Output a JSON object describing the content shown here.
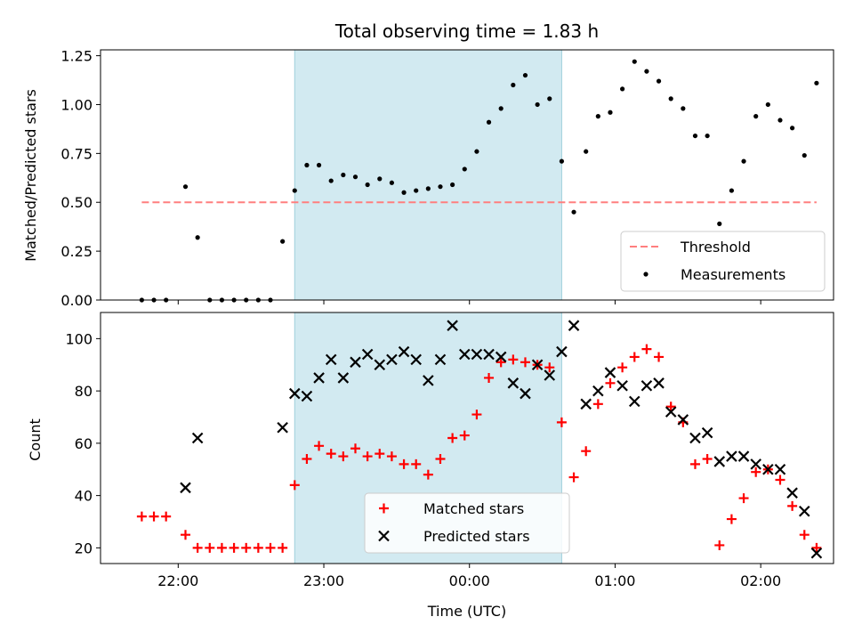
{
  "chart_data": {
    "title": "Total observing time = 1.83 h",
    "xlabel": "Time (UTC)",
    "x_ticks": [
      "22:00",
      "23:00",
      "00:00",
      "01:00",
      "02:00"
    ],
    "observing_window": {
      "start": "22:48",
      "end": "00:38",
      "color": "#add8e6"
    },
    "panels": [
      {
        "type": "scatter",
        "ylabel": "Matched/Predicted stars",
        "ylim": [
          0,
          1.28
        ],
        "y_ticks": [
          "0.00",
          "0.25",
          "0.50",
          "0.75",
          "1.00",
          "1.25"
        ],
        "legend_position": "lower-right",
        "threshold": {
          "name": "Threshold",
          "value": 0.5,
          "x_start": "21:45",
          "x_end": "02:23",
          "color": "#ff7f7f",
          "style": "dashed"
        },
        "series": [
          {
            "name": "Measurements",
            "marker": "dot",
            "color": "#000000",
            "points": [
              [
                "21:45",
                0.0
              ],
              [
                "21:50",
                0.0
              ],
              [
                "21:55",
                0.0
              ],
              [
                "22:03",
                0.58
              ],
              [
                "22:08",
                0.32
              ],
              [
                "22:13",
                0.0
              ],
              [
                "22:18",
                0.0
              ],
              [
                "22:23",
                0.0
              ],
              [
                "22:28",
                0.0
              ],
              [
                "22:33",
                0.0
              ],
              [
                "22:38",
                0.0
              ],
              [
                "22:43",
                0.3
              ],
              [
                "22:48",
                0.56
              ],
              [
                "22:53",
                0.69
              ],
              [
                "22:58",
                0.69
              ],
              [
                "23:03",
                0.61
              ],
              [
                "23:08",
                0.64
              ],
              [
                "23:13",
                0.63
              ],
              [
                "23:18",
                0.59
              ],
              [
                "23:23",
                0.62
              ],
              [
                "23:28",
                0.6
              ],
              [
                "23:33",
                0.55
              ],
              [
                "23:38",
                0.56
              ],
              [
                "23:43",
                0.57
              ],
              [
                "23:48",
                0.58
              ],
              [
                "23:53",
                0.59
              ],
              [
                "23:58",
                0.67
              ],
              [
                "00:03",
                0.76
              ],
              [
                "00:08",
                0.91
              ],
              [
                "00:13",
                0.98
              ],
              [
                "00:18",
                1.1
              ],
              [
                "00:23",
                1.15
              ],
              [
                "00:28",
                1.0
              ],
              [
                "00:33",
                1.03
              ],
              [
                "00:38",
                0.71
              ],
              [
                "00:43",
                0.45
              ],
              [
                "00:48",
                0.76
              ],
              [
                "00:53",
                0.94
              ],
              [
                "00:58",
                0.96
              ],
              [
                "01:03",
                1.08
              ],
              [
                "01:08",
                1.22
              ],
              [
                "01:13",
                1.17
              ],
              [
                "01:18",
                1.12
              ],
              [
                "01:23",
                1.03
              ],
              [
                "01:28",
                0.98
              ],
              [
                "01:33",
                0.84
              ],
              [
                "01:38",
                0.84
              ],
              [
                "01:43",
                0.39
              ],
              [
                "01:48",
                0.56
              ],
              [
                "01:53",
                0.71
              ],
              [
                "01:58",
                0.94
              ],
              [
                "02:03",
                1.0
              ],
              [
                "02:08",
                0.92
              ],
              [
                "02:13",
                0.88
              ],
              [
                "02:18",
                0.74
              ],
              [
                "02:23",
                1.11
              ]
            ]
          }
        ]
      },
      {
        "type": "scatter",
        "ylabel": "Count",
        "ylim": [
          14,
          110
        ],
        "y_ticks": [
          "20",
          "40",
          "60",
          "80",
          "100"
        ],
        "legend_position": "lower-center",
        "series": [
          {
            "name": "Matched stars",
            "marker": "plus",
            "color": "#ff0000",
            "points": [
              [
                "21:45",
                32
              ],
              [
                "21:50",
                32
              ],
              [
                "21:55",
                32
              ],
              [
                "22:03",
                25
              ],
              [
                "22:08",
                20
              ],
              [
                "22:13",
                20
              ],
              [
                "22:18",
                20
              ],
              [
                "22:23",
                20
              ],
              [
                "22:28",
                20
              ],
              [
                "22:33",
                20
              ],
              [
                "22:38",
                20
              ],
              [
                "22:43",
                20
              ],
              [
                "22:48",
                44
              ],
              [
                "22:53",
                54
              ],
              [
                "22:58",
                59
              ],
              [
                "23:03",
                56
              ],
              [
                "23:08",
                55
              ],
              [
                "23:13",
                58
              ],
              [
                "23:18",
                55
              ],
              [
                "23:23",
                56
              ],
              [
                "23:28",
                55
              ],
              [
                "23:33",
                52
              ],
              [
                "23:38",
                52
              ],
              [
                "23:43",
                48
              ],
              [
                "23:48",
                54
              ],
              [
                "23:53",
                62
              ],
              [
                "23:58",
                63
              ],
              [
                "00:03",
                71
              ],
              [
                "00:08",
                85
              ],
              [
                "00:13",
                91
              ],
              [
                "00:18",
                92
              ],
              [
                "00:23",
                91
              ],
              [
                "00:28",
                90
              ],
              [
                "00:33",
                89
              ],
              [
                "00:38",
                68
              ],
              [
                "00:43",
                47
              ],
              [
                "00:48",
                57
              ],
              [
                "00:53",
                75
              ],
              [
                "00:58",
                83
              ],
              [
                "01:03",
                89
              ],
              [
                "01:08",
                93
              ],
              [
                "01:13",
                96
              ],
              [
                "01:18",
                93
              ],
              [
                "01:23",
                74
              ],
              [
                "01:28",
                68
              ],
              [
                "01:33",
                52
              ],
              [
                "01:38",
                54
              ],
              [
                "01:43",
                21
              ],
              [
                "01:48",
                31
              ],
              [
                "01:53",
                39
              ],
              [
                "01:58",
                49
              ],
              [
                "02:03",
                50
              ],
              [
                "02:08",
                46
              ],
              [
                "02:13",
                36
              ],
              [
                "02:18",
                25
              ],
              [
                "02:23",
                20
              ]
            ]
          },
          {
            "name": "Predicted stars",
            "marker": "x",
            "color": "#000000",
            "points": [
              [
                "22:03",
                43
              ],
              [
                "22:08",
                62
              ],
              [
                "22:43",
                66
              ],
              [
                "22:48",
                79
              ],
              [
                "22:53",
                78
              ],
              [
                "22:58",
                85
              ],
              [
                "23:03",
                92
              ],
              [
                "23:08",
                85
              ],
              [
                "23:13",
                91
              ],
              [
                "23:18",
                94
              ],
              [
                "23:23",
                90
              ],
              [
                "23:28",
                92
              ],
              [
                "23:33",
                95
              ],
              [
                "23:38",
                92
              ],
              [
                "23:43",
                84
              ],
              [
                "23:48",
                92
              ],
              [
                "23:53",
                105
              ],
              [
                "23:58",
                94
              ],
              [
                "00:03",
                94
              ],
              [
                "00:08",
                94
              ],
              [
                "00:13",
                93
              ],
              [
                "00:18",
                83
              ],
              [
                "00:23",
                79
              ],
              [
                "00:28",
                90
              ],
              [
                "00:33",
                86
              ],
              [
                "00:38",
                95
              ],
              [
                "00:43",
                105
              ],
              [
                "00:48",
                75
              ],
              [
                "00:53",
                80
              ],
              [
                "00:58",
                87
              ],
              [
                "01:03",
                82
              ],
              [
                "01:08",
                76
              ],
              [
                "01:13",
                82
              ],
              [
                "01:18",
                83
              ],
              [
                "01:23",
                72
              ],
              [
                "01:28",
                69
              ],
              [
                "01:33",
                62
              ],
              [
                "01:38",
                64
              ],
              [
                "01:43",
                53
              ],
              [
                "01:48",
                55
              ],
              [
                "01:53",
                55
              ],
              [
                "01:58",
                52
              ],
              [
                "02:03",
                50
              ],
              [
                "02:08",
                50
              ],
              [
                "02:13",
                41
              ],
              [
                "02:18",
                34
              ],
              [
                "02:23",
                18
              ]
            ]
          }
        ]
      }
    ]
  }
}
